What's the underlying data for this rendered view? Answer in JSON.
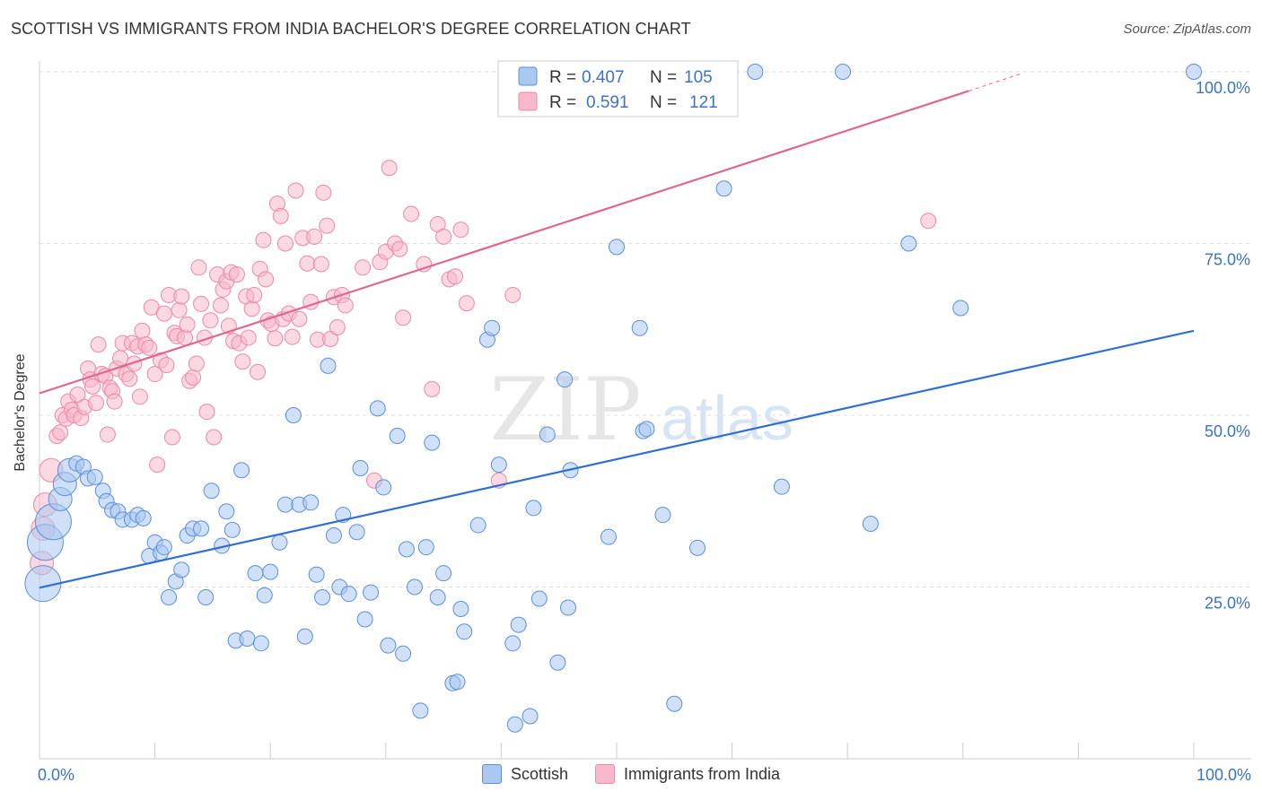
{
  "title": "SCOTTISH VS IMMIGRANTS FROM INDIA BACHELOR'S DEGREE CORRELATION CHART",
  "source": "Source: ZipAtlas.com",
  "watermark": {
    "zip": "ZIP",
    "atlas": "atlas"
  },
  "colors": {
    "scottish_fill": "#aac8f0",
    "scottish_stroke": "#5b8fd8",
    "scottish_line": "#2f6fcf",
    "india_fill": "#f7b8cb",
    "india_stroke": "#e98aa8",
    "india_line": "#e06690",
    "tick_label": "#3a72c8",
    "grid": "#dddddd"
  },
  "legend_top": [
    {
      "r_label": "R =",
      "r_value": "0.407",
      "n_label": "N =",
      "n_value": "105"
    },
    {
      "r_label": "R =",
      "r_value": "0.591",
      "n_label": "N =",
      "n_value": "121"
    }
  ],
  "chart_data": {
    "type": "scatter",
    "title": "SCOTTISH VS IMMIGRANTS FROM INDIA BACHELOR'S DEGREE CORRELATION CHART",
    "xlabel": "",
    "ylabel": "Bachelor's Degree",
    "xlim": [
      0,
      100
    ],
    "ylim": [
      0,
      100
    ],
    "x_ticks": [
      {
        "value": 0,
        "label": "0.0%"
      },
      {
        "value": 100,
        "label": "100.0%"
      }
    ],
    "y_ticks": [
      {
        "value": 25,
        "label": "25.0%"
      },
      {
        "value": 50,
        "label": "50.0%"
      },
      {
        "value": 75,
        "label": "75.0%"
      },
      {
        "value": 100,
        "label": "100.0%"
      }
    ],
    "grid": true,
    "legend_position": "bottom",
    "series": [
      {
        "name": "Scottish",
        "r": 0.407,
        "n": 105,
        "trend": {
          "x": [
            0,
            100
          ],
          "y": [
            24.9,
            62.3
          ]
        },
        "points": [
          [
            0.3,
            25.5,
            3
          ],
          [
            0.5,
            31.5,
            3
          ],
          [
            1.2,
            34.5,
            3
          ],
          [
            1.8,
            37.8,
            2
          ],
          [
            2.2,
            40,
            2
          ],
          [
            2.6,
            42,
            2
          ],
          [
            3.2,
            43,
            1
          ],
          [
            3.8,
            42.5,
            1
          ],
          [
            4.2,
            40.8,
            1
          ],
          [
            4.8,
            41,
            1
          ],
          [
            5.5,
            39,
            1
          ],
          [
            5.8,
            37.5,
            1
          ],
          [
            6.3,
            36.2,
            1
          ],
          [
            6.8,
            36,
            1
          ],
          [
            7.2,
            34.8,
            1
          ],
          [
            8,
            34.8,
            1
          ],
          [
            8.5,
            35.5,
            1
          ],
          [
            9,
            35,
            1
          ],
          [
            9.5,
            29.5,
            1
          ],
          [
            10,
            31.5,
            1
          ],
          [
            10.5,
            30,
            1
          ],
          [
            10.8,
            30.8,
            1
          ],
          [
            11.2,
            23.5,
            1
          ],
          [
            11.8,
            25.8,
            1
          ],
          [
            12.3,
            27.5,
            1
          ],
          [
            12.8,
            32.5,
            1
          ],
          [
            13.3,
            33.5,
            1
          ],
          [
            14,
            33.5,
            1
          ],
          [
            14.4,
            23.5,
            1
          ],
          [
            14.9,
            39,
            1
          ],
          [
            15.8,
            31,
            1
          ],
          [
            16.2,
            36,
            1
          ],
          [
            16.7,
            33.3,
            1
          ],
          [
            17,
            17.2,
            1
          ],
          [
            17.5,
            42,
            1
          ],
          [
            18,
            17.5,
            1
          ],
          [
            18.7,
            27,
            1
          ],
          [
            19.2,
            16.8,
            1
          ],
          [
            19.5,
            23.8,
            1
          ],
          [
            20,
            27.2,
            1
          ],
          [
            20.8,
            31.5,
            1
          ],
          [
            21.3,
            37,
            1
          ],
          [
            22,
            50,
            1
          ],
          [
            22.5,
            37,
            1
          ],
          [
            23,
            17.8,
            1
          ],
          [
            23.5,
            37.3,
            1
          ],
          [
            24,
            26.8,
            1
          ],
          [
            24.5,
            23.5,
            1
          ],
          [
            25,
            57.2,
            1
          ],
          [
            25.5,
            32.5,
            1
          ],
          [
            26,
            25,
            1
          ],
          [
            26.3,
            35.5,
            1
          ],
          [
            26.8,
            24,
            1
          ],
          [
            27.5,
            33,
            1
          ],
          [
            27.8,
            42.3,
            1
          ],
          [
            28.2,
            20.3,
            1
          ],
          [
            28.7,
            24.2,
            1
          ],
          [
            29.3,
            51,
            1
          ],
          [
            29.8,
            39.5,
            1
          ],
          [
            30.2,
            16.5,
            1
          ],
          [
            31,
            47,
            1
          ],
          [
            31.5,
            15.3,
            1
          ],
          [
            31.8,
            30.5,
            1
          ],
          [
            32.5,
            25,
            1
          ],
          [
            33,
            7,
            1
          ],
          [
            33.5,
            30.8,
            1
          ],
          [
            34,
            46,
            1
          ],
          [
            34.5,
            23.5,
            1
          ],
          [
            35,
            27,
            1
          ],
          [
            35.8,
            11,
            1
          ],
          [
            36.2,
            11.2,
            1
          ],
          [
            36.5,
            21.8,
            1
          ],
          [
            36.8,
            18.5,
            1
          ],
          [
            38,
            34,
            1
          ],
          [
            38.8,
            61,
            1
          ],
          [
            39.2,
            62.7,
            1
          ],
          [
            39.8,
            42.8,
            1
          ],
          [
            41,
            16.8,
            1
          ],
          [
            41.2,
            5,
            1
          ],
          [
            41.5,
            19.5,
            1
          ],
          [
            42.5,
            6.2,
            1
          ],
          [
            42.8,
            36.5,
            1
          ],
          [
            43.3,
            23.3,
            1
          ],
          [
            44,
            47.2,
            1
          ],
          [
            44.9,
            14,
            1
          ],
          [
            45.5,
            55.2,
            1
          ],
          [
            45.8,
            22,
            1
          ],
          [
            46,
            42,
            1
          ],
          [
            49.3,
            32.3,
            1
          ],
          [
            50,
            74.5,
            1
          ],
          [
            52,
            62.7,
            1
          ],
          [
            52.3,
            47.7,
            1
          ],
          [
            52.6,
            48,
            1
          ],
          [
            54,
            35.5,
            1
          ],
          [
            55,
            8,
            1
          ],
          [
            57,
            30.7,
            1
          ],
          [
            59.3,
            83,
            1
          ],
          [
            62,
            100,
            1
          ],
          [
            64.3,
            39.6,
            1
          ],
          [
            69.6,
            100,
            1
          ],
          [
            72,
            34.2,
            1
          ],
          [
            75.3,
            75,
            1
          ],
          [
            79.8,
            65.6,
            1
          ],
          [
            100,
            100,
            1
          ]
        ]
      },
      {
        "name": "Immigrants from India",
        "r": 0.591,
        "n": 121,
        "trend": {
          "x": [
            0,
            80.5
          ],
          "y": [
            53.2,
            97.2
          ]
        },
        "trend_dashed": {
          "x": [
            80.5,
            85
          ],
          "y": [
            97.2,
            99.7
          ]
        },
        "points": [
          [
            0.2,
            28.5,
            2
          ],
          [
            0.3,
            33.5,
            2
          ],
          [
            0.5,
            37,
            2
          ],
          [
            1,
            42,
            2
          ],
          [
            1.5,
            47,
            1
          ],
          [
            1.8,
            47.5,
            1
          ],
          [
            2,
            50,
            1
          ],
          [
            2.3,
            49.5,
            1
          ],
          [
            2.5,
            52,
            1
          ],
          [
            2.8,
            50.8,
            1
          ],
          [
            3,
            50,
            1
          ],
          [
            3.3,
            53,
            1
          ],
          [
            3.6,
            49.6,
            1
          ],
          [
            3.9,
            51.2,
            1
          ],
          [
            4.2,
            56.8,
            1
          ],
          [
            4.4,
            55.2,
            1
          ],
          [
            4.6,
            54.2,
            1
          ],
          [
            4.9,
            51.8,
            1
          ],
          [
            5.1,
            60.3,
            1
          ],
          [
            5.4,
            56,
            1
          ],
          [
            5.7,
            55.7,
            1
          ],
          [
            5.9,
            47.2,
            1
          ],
          [
            6.1,
            54,
            1
          ],
          [
            6.3,
            53.5,
            1
          ],
          [
            6.5,
            52,
            1
          ],
          [
            6.7,
            56.8,
            1
          ],
          [
            7,
            58.3,
            1
          ],
          [
            7.2,
            60.5,
            1
          ],
          [
            7.5,
            56,
            1
          ],
          [
            7.8,
            55.3,
            1
          ],
          [
            8,
            60.5,
            1
          ],
          [
            8.2,
            57.5,
            1
          ],
          [
            8.5,
            60,
            1
          ],
          [
            8.7,
            52.7,
            1
          ],
          [
            8.9,
            62.3,
            1
          ],
          [
            9.2,
            60.3,
            1
          ],
          [
            9.5,
            59.8,
            1
          ],
          [
            9.7,
            65.7,
            1
          ],
          [
            10,
            56,
            1
          ],
          [
            10.2,
            42.8,
            1
          ],
          [
            10.5,
            58,
            1
          ],
          [
            10.8,
            64.8,
            1
          ],
          [
            11,
            57.3,
            1
          ],
          [
            11.2,
            67.5,
            1
          ],
          [
            11.5,
            46.8,
            1
          ],
          [
            11.7,
            62,
            1
          ],
          [
            11.9,
            61.5,
            1
          ],
          [
            12.1,
            65.3,
            1
          ],
          [
            12.3,
            67.3,
            1
          ],
          [
            12.6,
            61.3,
            1
          ],
          [
            12.8,
            63.2,
            1
          ],
          [
            13,
            55,
            1
          ],
          [
            13.3,
            55.5,
            1
          ],
          [
            13.6,
            57.5,
            1
          ],
          [
            13.8,
            71.5,
            1
          ],
          [
            14,
            66.2,
            1
          ],
          [
            14.3,
            61.3,
            1
          ],
          [
            14.5,
            50.5,
            1
          ],
          [
            14.8,
            63.8,
            1
          ],
          [
            15.1,
            46.8,
            1
          ],
          [
            15.4,
            70.5,
            1
          ],
          [
            15.7,
            66,
            1
          ],
          [
            15.9,
            68.3,
            1
          ],
          [
            16.2,
            69.5,
            1
          ],
          [
            16.4,
            63,
            1
          ],
          [
            16.6,
            70.8,
            1
          ],
          [
            16.8,
            60.8,
            1
          ],
          [
            17.1,
            70.5,
            1
          ],
          [
            17.3,
            60.5,
            1
          ],
          [
            17.6,
            57.8,
            1
          ],
          [
            17.9,
            67.3,
            1
          ],
          [
            18.1,
            61.3,
            1
          ],
          [
            18.4,
            65.5,
            1
          ],
          [
            18.6,
            67.5,
            1
          ],
          [
            18.9,
            56.3,
            1
          ],
          [
            19.1,
            71.3,
            1
          ],
          [
            19.4,
            75.5,
            1
          ],
          [
            19.6,
            69.8,
            1
          ],
          [
            19.8,
            63.8,
            1
          ],
          [
            20.1,
            63.3,
            1
          ],
          [
            20.4,
            61.2,
            1
          ],
          [
            20.6,
            80.8,
            1
          ],
          [
            20.9,
            79,
            1
          ],
          [
            21.1,
            64,
            1
          ],
          [
            21.3,
            75,
            1
          ],
          [
            21.6,
            64.8,
            1
          ],
          [
            21.9,
            61.4,
            1
          ],
          [
            22.2,
            82.7,
            1
          ],
          [
            22.5,
            64,
            1
          ],
          [
            22.8,
            75.8,
            1
          ],
          [
            23.2,
            72.1,
            1
          ],
          [
            23.5,
            66.5,
            1
          ],
          [
            23.8,
            76,
            1
          ],
          [
            24.1,
            61,
            1
          ],
          [
            24.4,
            72,
            1
          ],
          [
            24.6,
            82.4,
            1
          ],
          [
            24.9,
            77.6,
            1
          ],
          [
            25.2,
            61.1,
            1
          ],
          [
            25.5,
            67.2,
            1
          ],
          [
            25.8,
            62.8,
            1
          ],
          [
            26.2,
            67.5,
            1
          ],
          [
            26.5,
            66,
            1
          ],
          [
            28,
            71.5,
            1
          ],
          [
            29,
            40.5,
            1
          ],
          [
            29.5,
            72.3,
            1
          ],
          [
            30,
            73.8,
            1
          ],
          [
            30.3,
            86,
            1
          ],
          [
            30.8,
            75,
            1
          ],
          [
            31.2,
            74.2,
            1
          ],
          [
            31.5,
            64.2,
            1
          ],
          [
            32.2,
            79.3,
            1
          ],
          [
            33.3,
            72,
            1
          ],
          [
            34,
            53.8,
            1
          ],
          [
            34.5,
            77.8,
            1
          ],
          [
            35,
            76,
            1
          ],
          [
            35.5,
            69.8,
            1
          ],
          [
            36,
            70.2,
            1
          ],
          [
            36.5,
            77,
            1
          ],
          [
            37,
            66.3,
            1
          ],
          [
            39.8,
            40.5,
            1
          ],
          [
            41,
            67.5,
            1
          ],
          [
            77,
            78.3,
            1
          ]
        ]
      }
    ]
  }
}
